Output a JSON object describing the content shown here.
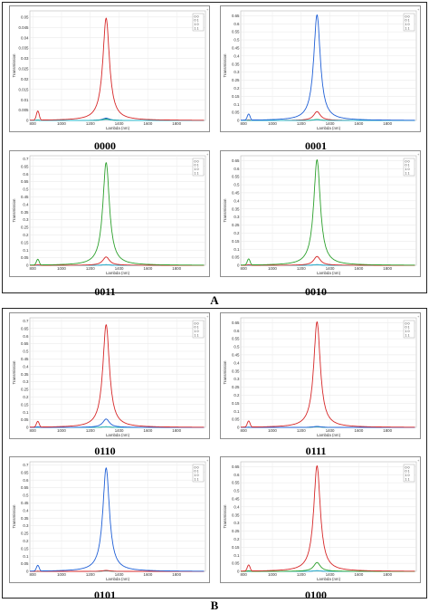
{
  "panels": [
    {
      "letter": "A"
    },
    {
      "letter": "B"
    }
  ],
  "chart_data": [
    {
      "id": "0000",
      "caption": "0000",
      "type": "line",
      "xlabel": "Lambda (nm)",
      "ylabel": "Transmission",
      "xticks": [
        800,
        1000,
        1200,
        1400,
        1600,
        1800
      ],
      "xlim": [
        780,
        2000
      ],
      "yticks": [
        0,
        0.005,
        0.01,
        0.015,
        0.02,
        0.025,
        0.03,
        0.035,
        0.04,
        0.045,
        0.05
      ],
      "ylim": [
        0,
        0.053
      ],
      "legend": [
        "0 0",
        "0 1",
        "1 0",
        "1 1"
      ],
      "series": [
        {
          "color": "#1f5fd6",
          "peak": 0.0011,
          "side": 0.0002
        },
        {
          "color": "#2ca02c",
          "peak": 0.0007,
          "side": 0.0002
        },
        {
          "color": "#27b5c8",
          "peak": 0.0005,
          "side": 0.0001
        },
        {
          "color": "#d62728",
          "peak": 0.0495,
          "side": 0.0046
        }
      ]
    },
    {
      "id": "0001",
      "caption": "0001",
      "type": "line",
      "xlabel": "Lambda (nm)",
      "ylabel": "Transmission",
      "xticks": [
        800,
        1000,
        1200,
        1400,
        1600,
        1800
      ],
      "xlim": [
        780,
        2000
      ],
      "yticks": [
        0,
        0.05,
        0.1,
        0.15,
        0.2,
        0.25,
        0.3,
        0.35,
        0.4,
        0.45,
        0.5,
        0.55,
        0.6,
        0.65
      ],
      "ylim": [
        0,
        0.68
      ],
      "legend": [
        "0 0",
        "0 1",
        "1 0",
        "1 1"
      ],
      "series": [
        {
          "color": "#d62728",
          "peak": 0.055,
          "side": 0.004
        },
        {
          "color": "#2ca02c",
          "peak": 0.006,
          "side": 0.001
        },
        {
          "color": "#27b5c8",
          "peak": 0.004,
          "side": 0.001
        },
        {
          "color": "#1f5fd6",
          "peak": 0.655,
          "side": 0.04
        }
      ]
    },
    {
      "id": "0011",
      "caption": "0011",
      "type": "line",
      "xlabel": "Lambda (nm)",
      "ylabel": "Transmission",
      "xticks": [
        800,
        1000,
        1200,
        1400,
        1600,
        1800
      ],
      "xlim": [
        780,
        2000
      ],
      "yticks": [
        0,
        0.05,
        0.1,
        0.15,
        0.2,
        0.25,
        0.3,
        0.35,
        0.4,
        0.45,
        0.5,
        0.55,
        0.6,
        0.65,
        0.7
      ],
      "ylim": [
        0,
        0.72
      ],
      "legend": [
        "0 0",
        "0 1",
        "1 0",
        "1 1"
      ],
      "series": [
        {
          "color": "#1f5fd6",
          "peak": 0.004,
          "side": 0.001
        },
        {
          "color": "#27b5c8",
          "peak": 0.004,
          "side": 0.001
        },
        {
          "color": "#d62728",
          "peak": 0.055,
          "side": 0.004
        },
        {
          "color": "#2ca02c",
          "peak": 0.675,
          "side": 0.04
        }
      ]
    },
    {
      "id": "0010",
      "caption": "0010",
      "type": "line",
      "xlabel": "Lambda (nm)",
      "ylabel": "Transmission",
      "xticks": [
        800,
        1000,
        1200,
        1400,
        1600,
        1800
      ],
      "xlim": [
        780,
        2000
      ],
      "yticks": [
        0,
        0.05,
        0.1,
        0.15,
        0.2,
        0.25,
        0.3,
        0.35,
        0.4,
        0.45,
        0.5,
        0.55,
        0.6,
        0.65
      ],
      "ylim": [
        0,
        0.68
      ],
      "legend": [
        "0 0",
        "0 1",
        "1 0",
        "1 1"
      ],
      "series": [
        {
          "color": "#1f5fd6",
          "peak": 0.004,
          "side": 0.001
        },
        {
          "color": "#27b5c8",
          "peak": 0.004,
          "side": 0.001
        },
        {
          "color": "#d62728",
          "peak": 0.055,
          "side": 0.004
        },
        {
          "color": "#2ca02c",
          "peak": 0.655,
          "side": 0.04
        }
      ]
    },
    {
      "id": "0110",
      "caption": "0110",
      "type": "line",
      "xlabel": "Lambda (nm)",
      "ylabel": "Transmission",
      "xticks": [
        800,
        1000,
        1200,
        1400,
        1600,
        1800
      ],
      "xlim": [
        780,
        2000
      ],
      "yticks": [
        0,
        0.05,
        0.1,
        0.15,
        0.2,
        0.25,
        0.3,
        0.35,
        0.4,
        0.45,
        0.5,
        0.55,
        0.6,
        0.65,
        0.7
      ],
      "ylim": [
        0,
        0.72
      ],
      "legend": [
        "0 0",
        "0 1",
        "1 0",
        "1 1"
      ],
      "series": [
        {
          "color": "#2ca02c",
          "peak": 0.004,
          "side": 0.001
        },
        {
          "color": "#27b5c8",
          "peak": 0.004,
          "side": 0.001
        },
        {
          "color": "#1f5fd6",
          "peak": 0.055,
          "side": 0.004
        },
        {
          "color": "#d62728",
          "peak": 0.675,
          "side": 0.04
        }
      ]
    },
    {
      "id": "0111",
      "caption": "0111",
      "type": "line",
      "xlabel": "Lambda (nm)",
      "ylabel": "Transmission",
      "xticks": [
        800,
        1000,
        1200,
        1400,
        1600,
        1800
      ],
      "xlim": [
        780,
        2000
      ],
      "yticks": [
        0,
        0.05,
        0.1,
        0.15,
        0.2,
        0.25,
        0.3,
        0.35,
        0.4,
        0.45,
        0.5,
        0.55,
        0.6,
        0.65
      ],
      "ylim": [
        0,
        0.68
      ],
      "legend": [
        "0 0",
        "0 1",
        "1 0",
        "1 1"
      ],
      "series": [
        {
          "color": "#2ca02c",
          "peak": 0.004,
          "side": 0.001
        },
        {
          "color": "#27b5c8",
          "peak": 0.004,
          "side": 0.001
        },
        {
          "color": "#1f5fd6",
          "peak": 0.006,
          "side": 0.001
        },
        {
          "color": "#d62728",
          "peak": 0.655,
          "side": 0.04
        }
      ]
    },
    {
      "id": "0101",
      "caption": "0101",
      "type": "line",
      "xlabel": "Lambda (nm)",
      "ylabel": "Transmission",
      "xticks": [
        800,
        1000,
        1200,
        1400,
        1600,
        1800
      ],
      "xlim": [
        780,
        2000
      ],
      "yticks": [
        0,
        0.05,
        0.1,
        0.15,
        0.2,
        0.25,
        0.3,
        0.35,
        0.4,
        0.45,
        0.5,
        0.55,
        0.6,
        0.65,
        0.7
      ],
      "ylim": [
        0,
        0.72
      ],
      "legend": [
        "0 0",
        "0 1",
        "1 0",
        "1 1"
      ],
      "series": [
        {
          "color": "#2ca02c",
          "peak": 0.004,
          "side": 0.001
        },
        {
          "color": "#27b5c8",
          "peak": 0.004,
          "side": 0.001
        },
        {
          "color": "#d62728",
          "peak": 0.006,
          "side": 0.001
        },
        {
          "color": "#1f5fd6",
          "peak": 0.68,
          "side": 0.04
        }
      ]
    },
    {
      "id": "0100",
      "caption": "0100",
      "type": "line",
      "xlabel": "Lambda (nm)",
      "ylabel": "Transmission",
      "xticks": [
        800,
        1000,
        1200,
        1400,
        1600,
        1800
      ],
      "xlim": [
        780,
        2000
      ],
      "yticks": [
        0,
        0.05,
        0.1,
        0.15,
        0.2,
        0.25,
        0.3,
        0.35,
        0.4,
        0.45,
        0.5,
        0.55,
        0.6,
        0.65
      ],
      "ylim": [
        0,
        0.68
      ],
      "legend": [
        "0 0",
        "0 1",
        "1 0",
        "1 1"
      ],
      "series": [
        {
          "color": "#1f5fd6",
          "peak": 0.004,
          "side": 0.001
        },
        {
          "color": "#27b5c8",
          "peak": 0.004,
          "side": 0.001
        },
        {
          "color": "#2ca02c",
          "peak": 0.055,
          "side": 0.004
        },
        {
          "color": "#d62728",
          "peak": 0.655,
          "side": 0.04
        }
      ]
    }
  ]
}
